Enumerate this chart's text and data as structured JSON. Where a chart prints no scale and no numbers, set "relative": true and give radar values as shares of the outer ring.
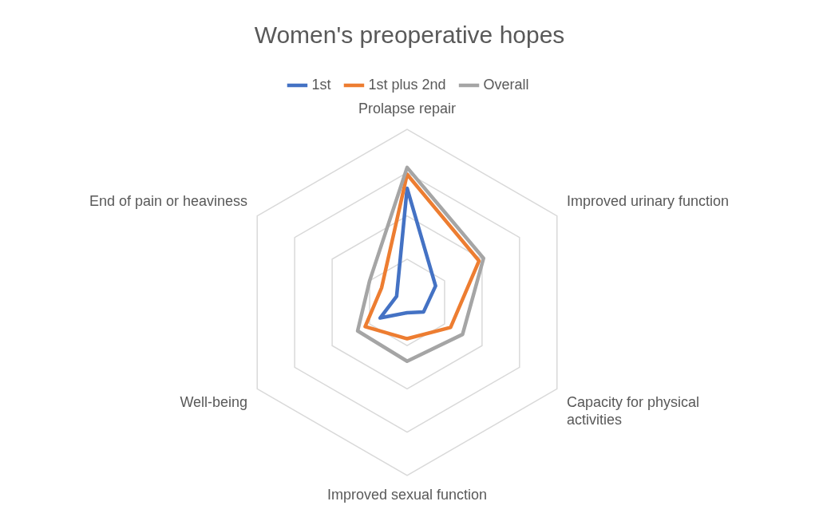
{
  "chart_data": {
    "type": "radar",
    "title": "Women's preoperative hopes",
    "categories": [
      "Prolapse repair",
      "Improved urinary function",
      "Capacity for physical activities",
      "Improved sexual function",
      "Well-being",
      "End of pain or heaviness"
    ],
    "relative": true,
    "legend": "top",
    "grid": true,
    "marker": "none",
    "series": [
      {
        "name": "1st",
        "color": "#4472c4",
        "values": [
          0.66,
          0.19,
          0.11,
          0.06,
          0.18,
          0.07
        ]
      },
      {
        "name": "1st plus 2nd",
        "color": "#ed7d31",
        "values": [
          0.74,
          0.48,
          0.29,
          0.21,
          0.28,
          0.17
        ]
      },
      {
        "name": "Overall",
        "color": "#a5a5a5",
        "values": [
          0.78,
          0.51,
          0.37,
          0.34,
          0.33,
          0.25
        ]
      }
    ]
  }
}
